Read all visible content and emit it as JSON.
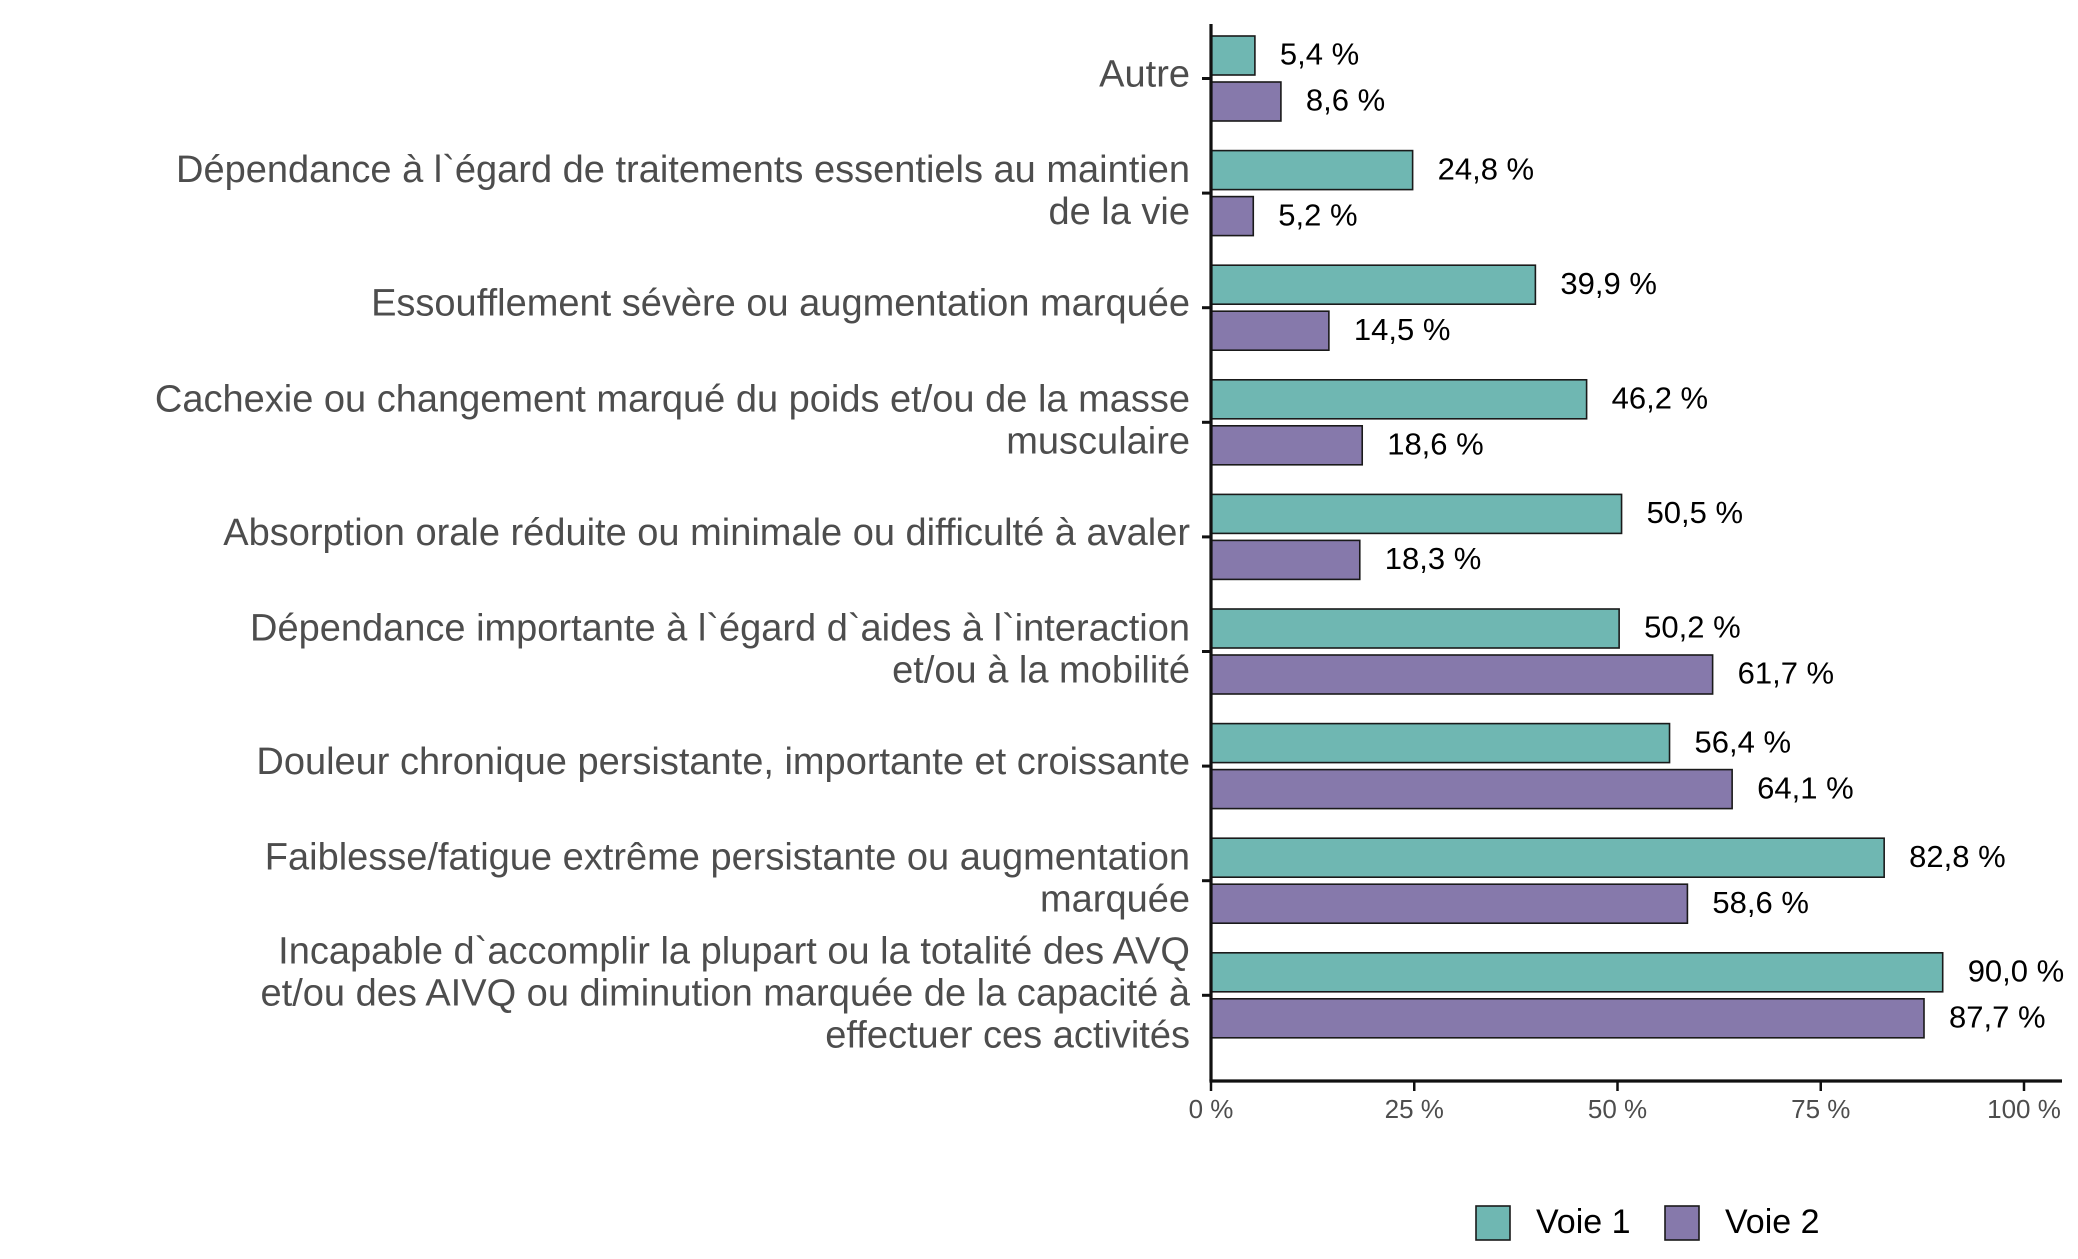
{
  "chart_data": {
    "type": "bar",
    "orientation": "horizontal",
    "categories": [
      [
        "Autre"
      ],
      [
        "Dépendance à l`égard de traitements essentiels au maintien",
        "de la vie"
      ],
      [
        "Essoufflement sévère ou augmentation marquée"
      ],
      [
        "Cachexie ou changement marqué du poids et/ou de la masse",
        "musculaire"
      ],
      [
        "Absorption orale réduite ou minimale ou difficulté à avaler"
      ],
      [
        "Dépendance importante à l`égard d`aides à l`interaction",
        "et/ou à la mobilité"
      ],
      [
        "Douleur chronique persistante, importante et croissante"
      ],
      [
        "Faiblesse/fatigue extrême persistante ou augmentation",
        "marquée"
      ],
      [
        "Incapable d`accomplir la plupart ou la totalité des AVQ",
        "et/ou des AIVQ ou diminution marquée de la capacité à",
        "effectuer ces activités"
      ]
    ],
    "series": [
      {
        "name": "Voie 1",
        "color": "#6fb7b2",
        "values": [
          5.4,
          24.8,
          39.9,
          46.2,
          50.5,
          50.2,
          56.4,
          82.8,
          90.0
        ],
        "labels": [
          "5,4 %",
          "24,8 %",
          "39,9 %",
          "46,2 %",
          "50,5 %",
          "50,2 %",
          "56,4 %",
          "82,8 %",
          "90,0 %"
        ]
      },
      {
        "name": "Voie 2",
        "color": "#8679ab",
        "values": [
          8.6,
          5.2,
          14.5,
          18.6,
          18.3,
          61.7,
          64.1,
          58.6,
          87.7
        ],
        "labels": [
          "8,6 %",
          "5,2 %",
          "14,5 %",
          "18,6 %",
          "18,3 %",
          "61,7 %",
          "64,1 %",
          "58,6 %",
          "87,7 %"
        ]
      }
    ],
    "xlim": [
      0,
      100
    ],
    "x_ticks": [
      0,
      25,
      50,
      75,
      100
    ],
    "x_tick_labels": [
      "0 %",
      "25 %",
      "50 %",
      "75 %",
      "100 %"
    ],
    "xlabel": "",
    "ylabel": "",
    "title": "",
    "legend": {
      "position": "bottom",
      "entries": [
        "Voie 1",
        "Voie 2"
      ]
    }
  }
}
